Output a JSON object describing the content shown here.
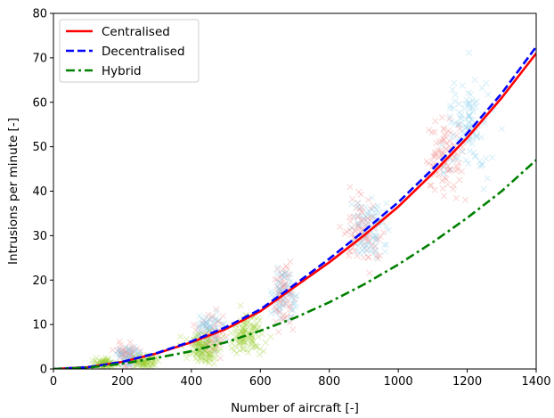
{
  "chart_data": {
    "type": "scatter",
    "title": "",
    "xlabel": "Number of aircraft [-]",
    "ylabel": "Intrusions per minute [-]",
    "xlim": [
      0,
      1400
    ],
    "ylim": [
      0,
      80
    ],
    "xticks": [
      0,
      200,
      400,
      600,
      800,
      1000,
      1200,
      1400
    ],
    "yticks": [
      0,
      10,
      20,
      30,
      40,
      50,
      60,
      70,
      80
    ],
    "grid": false,
    "legend_position": "top-left",
    "series": [
      {
        "name": "Centralised",
        "kind": "fit-line",
        "style": "solid",
        "color": "#ff0000",
        "x": [
          0,
          100,
          200,
          300,
          400,
          500,
          600,
          700,
          800,
          900,
          1000,
          1100,
          1200,
          1300,
          1400
        ],
        "y": [
          0,
          0.4,
          1.6,
          3.5,
          6.0,
          9.0,
          13.0,
          18.5,
          24.0,
          30.0,
          36.5,
          44.0,
          52.0,
          61.0,
          71.0
        ]
      },
      {
        "name": "Decentralised",
        "kind": "fit-line",
        "style": "dashed",
        "color": "#0000ff",
        "x": [
          0,
          100,
          200,
          300,
          400,
          500,
          600,
          700,
          800,
          900,
          1000,
          1100,
          1200,
          1300,
          1400
        ],
        "y": [
          0,
          0.4,
          1.6,
          3.6,
          6.2,
          9.4,
          13.4,
          19.0,
          24.8,
          31.0,
          37.5,
          45.0,
          53.0,
          62.0,
          72.5
        ]
      },
      {
        "name": "Hybrid",
        "kind": "fit-line",
        "style": "dashdot",
        "color": "#008000",
        "x": [
          0,
          100,
          200,
          300,
          400,
          500,
          600,
          700,
          800,
          900,
          1000,
          1100,
          1200,
          1300,
          1400
        ],
        "y": [
          0,
          0.3,
          1.2,
          2.5,
          4.0,
          6.0,
          8.6,
          11.5,
          15.0,
          19.0,
          23.5,
          28.5,
          34.0,
          40.0,
          47.0
        ]
      }
    ],
    "scatter_clusters": [
      {
        "group": "centralised",
        "color": "#f08080",
        "x_center": 215,
        "x_spread": 30,
        "y_center": 3.0,
        "y_spread": 2.5,
        "count": 55
      },
      {
        "group": "centralised",
        "color": "#f08080",
        "x_center": 455,
        "x_spread": 40,
        "y_center": 8.0,
        "y_spread": 4.0,
        "count": 60
      },
      {
        "group": "centralised",
        "color": "#f08080",
        "x_center": 670,
        "x_spread": 28,
        "y_center": 16.0,
        "y_spread": 6.0,
        "count": 65
      },
      {
        "group": "centralised",
        "color": "#f08080",
        "x_center": 900,
        "x_spread": 50,
        "y_center": 31.0,
        "y_spread": 7.0,
        "count": 85
      },
      {
        "group": "centralised",
        "color": "#f08080",
        "x_center": 1130,
        "x_spread": 55,
        "y_center": 47.0,
        "y_spread": 8.0,
        "count": 90
      },
      {
        "group": "decentralised",
        "color": "#87ceeb",
        "x_center": 220,
        "x_spread": 35,
        "y_center": 2.8,
        "y_spread": 2.0,
        "count": 55
      },
      {
        "group": "decentralised",
        "color": "#87ceeb",
        "x_center": 450,
        "x_spread": 40,
        "y_center": 8.5,
        "y_spread": 4.0,
        "count": 60
      },
      {
        "group": "decentralised",
        "color": "#87ceeb",
        "x_center": 670,
        "x_spread": 28,
        "y_center": 17.0,
        "y_spread": 6.0,
        "count": 65
      },
      {
        "group": "decentralised",
        "color": "#87ceeb",
        "x_center": 920,
        "x_spread": 50,
        "y_center": 31.0,
        "y_spread": 7.0,
        "count": 85
      },
      {
        "group": "decentralised",
        "color": "#87ceeb",
        "x_center": 1200,
        "x_spread": 70,
        "y_center": 55.0,
        "y_spread": 10.0,
        "count": 110
      },
      {
        "group": "hybrid",
        "color": "#9acd32",
        "x_center": 150,
        "x_spread": 35,
        "y_center": 1.2,
        "y_spread": 1.0,
        "count": 70
      },
      {
        "group": "hybrid",
        "color": "#9acd32",
        "x_center": 270,
        "x_spread": 30,
        "y_center": 1.8,
        "y_spread": 1.2,
        "count": 70
      },
      {
        "group": "hybrid",
        "color": "#9acd32",
        "x_center": 430,
        "x_spread": 45,
        "y_center": 4.5,
        "y_spread": 3.0,
        "count": 110
      },
      {
        "group": "hybrid",
        "color": "#9acd32",
        "x_center": 560,
        "x_spread": 45,
        "y_center": 8.0,
        "y_spread": 4.0,
        "count": 110
      }
    ]
  }
}
